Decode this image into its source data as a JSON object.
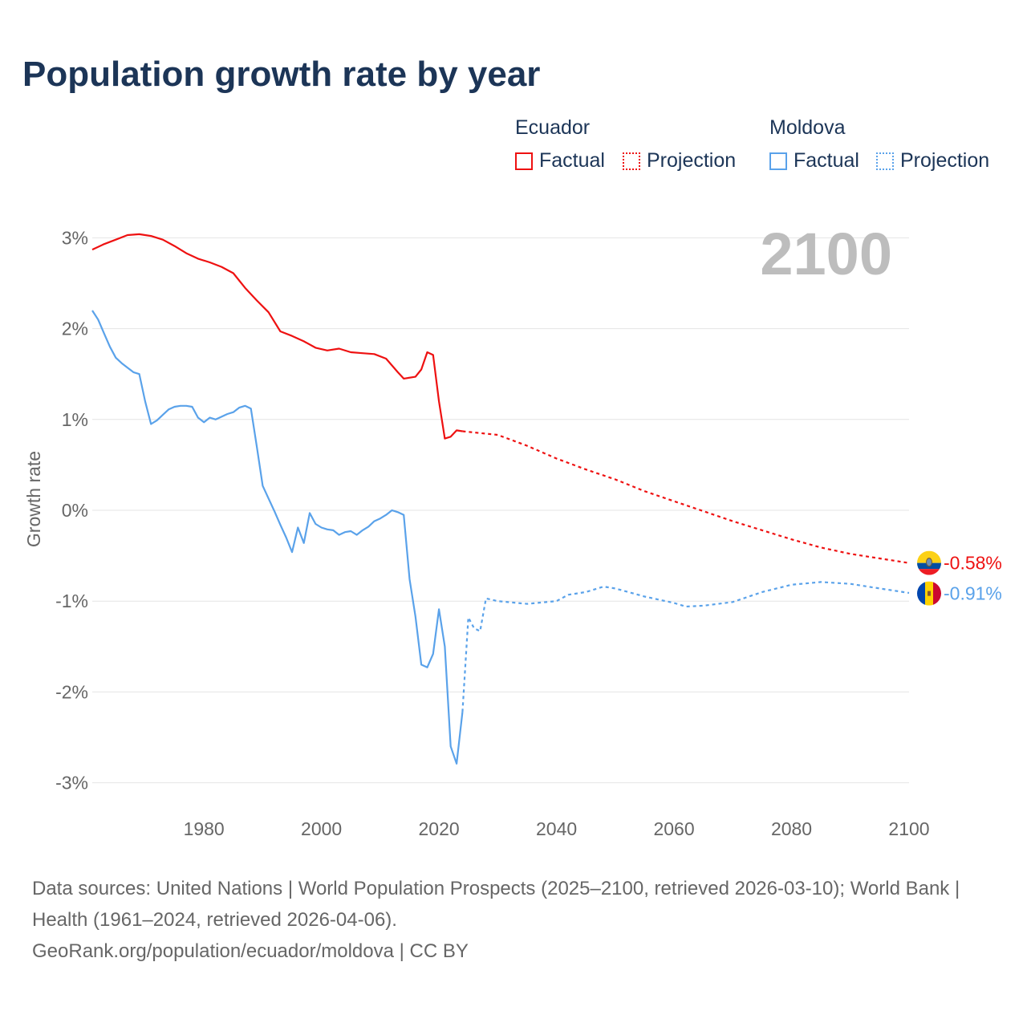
{
  "title": "Population growth rate by year",
  "legend": {
    "groups": [
      {
        "name": "Ecuador",
        "factual": "Factual",
        "projection": "Projection",
        "color": "#ee1111"
      },
      {
        "name": "Moldova",
        "factual": "Factual",
        "projection": "Projection",
        "color": "#5aa2ea"
      }
    ]
  },
  "year_label": "2100",
  "footer": {
    "sources": "Data sources: United Nations | World Population Prospects (2025–2100, retrieved 2026-03-10); World Bank | Health (1961–2024, retrieved 2026-04-06).",
    "credit": "GeoRank.org/population/ecuador/moldova | CC BY"
  },
  "chart_data": {
    "type": "line",
    "title": "Population growth rate by year",
    "xlabel": "",
    "ylabel": "Growth rate",
    "xlim": [
      1961,
      2100
    ],
    "ylim": [
      -3.3,
      3.1
    ],
    "x_ticks": [
      1980,
      2000,
      2020,
      2040,
      2060,
      2080,
      2100
    ],
    "y_ticks": [
      3,
      2,
      1,
      0,
      -1,
      -2,
      -3
    ],
    "y_tick_labels": [
      "3%",
      "2%",
      "1%",
      "0%",
      "-1%",
      "-2%",
      "-3%"
    ],
    "grid": true,
    "series": [
      {
        "name": "Ecuador",
        "color": "#ee1111",
        "end_label": "-0.58%",
        "factual": {
          "x": [
            1961,
            1963,
            1965,
            1967,
            1969,
            1971,
            1973,
            1975,
            1977,
            1979,
            1981,
            1983,
            1985,
            1987,
            1989,
            1991,
            1993,
            1995,
            1997,
            1999,
            2001,
            2003,
            2005,
            2007,
            2009,
            2011,
            2013,
            2014,
            2016,
            2017,
            2018,
            2019,
            2020,
            2021,
            2022,
            2023,
            2024
          ],
          "y": [
            2.87,
            2.93,
            2.98,
            3.03,
            3.04,
            3.02,
            2.98,
            2.91,
            2.83,
            2.77,
            2.73,
            2.68,
            2.61,
            2.45,
            2.31,
            2.18,
            1.97,
            1.92,
            1.86,
            1.79,
            1.76,
            1.78,
            1.74,
            1.73,
            1.72,
            1.67,
            1.52,
            1.45,
            1.47,
            1.55,
            1.74,
            1.71,
            1.2,
            0.79,
            0.81,
            0.88,
            0.87
          ]
        },
        "projection": {
          "x": [
            2024,
            2030,
            2035,
            2040,
            2045,
            2050,
            2055,
            2060,
            2065,
            2070,
            2075,
            2080,
            2085,
            2090,
            2095,
            2100
          ],
          "y": [
            0.87,
            0.83,
            0.71,
            0.57,
            0.45,
            0.34,
            0.21,
            0.1,
            -0.01,
            -0.12,
            -0.22,
            -0.32,
            -0.41,
            -0.48,
            -0.53,
            -0.58
          ]
        }
      },
      {
        "name": "Moldova",
        "color": "#5aa2ea",
        "end_label": "-0.91%",
        "factual": {
          "x": [
            1961,
            1962,
            1963,
            1964,
            1965,
            1966,
            1967,
            1968,
            1969,
            1970,
            1971,
            1972,
            1973,
            1974,
            1975,
            1976,
            1977,
            1978,
            1979,
            1980,
            1981,
            1982,
            1983,
            1984,
            1985,
            1986,
            1987,
            1988,
            1989,
            1990,
            1991,
            1992,
            1993,
            1994,
            1995,
            1996,
            1997,
            1998,
            1999,
            2000,
            2001,
            2002,
            2003,
            2004,
            2005,
            2006,
            2007,
            2008,
            2009,
            2010,
            2011,
            2012,
            2013,
            2014,
            2015,
            2016,
            2017,
            2018,
            2019,
            2020,
            2021,
            2022,
            2023,
            2024
          ],
          "y": [
            2.2,
            2.1,
            1.95,
            1.8,
            1.68,
            1.62,
            1.57,
            1.52,
            1.5,
            1.2,
            0.95,
            0.99,
            1.05,
            1.11,
            1.14,
            1.15,
            1.15,
            1.14,
            1.02,
            0.97,
            1.02,
            1.0,
            1.03,
            1.06,
            1.08,
            1.13,
            1.15,
            1.12,
            0.7,
            0.27,
            0.13,
            -0.01,
            -0.16,
            -0.3,
            -0.46,
            -0.19,
            -0.36,
            -0.03,
            -0.15,
            -0.19,
            -0.21,
            -0.22,
            -0.27,
            -0.24,
            -0.23,
            -0.27,
            -0.22,
            -0.18,
            -0.12,
            -0.09,
            -0.05,
            0.0,
            -0.02,
            -0.05,
            -0.76,
            -1.17,
            -1.7,
            -1.73,
            -1.58,
            -1.09,
            -1.5,
            -2.6,
            -2.79,
            -2.22
          ]
        },
        "projection": {
          "x": [
            2024,
            2025,
            2026,
            2027,
            2028,
            2030,
            2035,
            2040,
            2042,
            2045,
            2048,
            2050,
            2055,
            2060,
            2062,
            2065,
            2070,
            2075,
            2080,
            2085,
            2090,
            2095,
            2100
          ],
          "y": [
            -2.22,
            -1.18,
            -1.3,
            -1.33,
            -0.97,
            -1.0,
            -1.03,
            -1.0,
            -0.93,
            -0.9,
            -0.84,
            -0.86,
            -0.95,
            -1.02,
            -1.06,
            -1.05,
            -1.01,
            -0.9,
            -0.82,
            -0.79,
            -0.81,
            -0.86,
            -0.91
          ]
        }
      }
    ]
  }
}
